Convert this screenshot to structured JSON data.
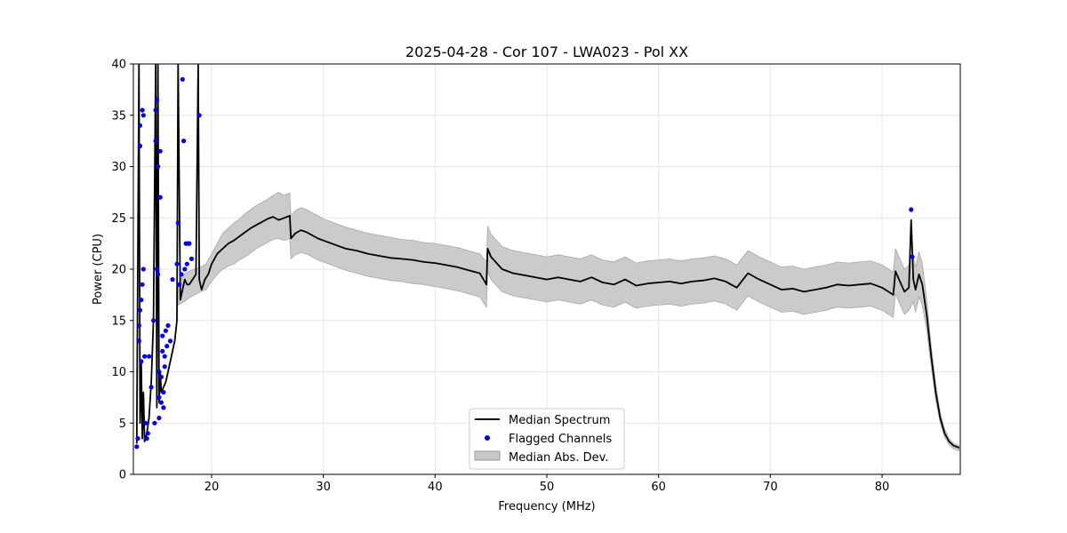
{
  "chart_data": {
    "type": "line",
    "title": "2025-04-28 - Cor 107 - LWA023 - Pol XX",
    "xlabel": "Frequency (MHz)",
    "ylabel": "Power (CPU)",
    "xlim": [
      13,
      87
    ],
    "ylim": [
      0,
      40
    ],
    "xticks": [
      20,
      30,
      40,
      50,
      60,
      70,
      80
    ],
    "yticks": [
      0,
      5,
      10,
      15,
      20,
      25,
      30,
      35,
      40
    ],
    "grid": true,
    "legend_position": "bottom-center",
    "series": [
      {
        "name": "Median Spectrum",
        "kind": "line",
        "color": "#000000",
        "x": [
          13.3,
          13.5,
          13.6,
          13.7,
          13.8,
          13.9,
          14.0,
          14.2,
          14.4,
          14.6,
          14.8,
          15.0,
          15.1,
          15.2,
          15.3,
          15.4,
          15.5,
          15.7,
          15.9,
          16.1,
          16.3,
          16.5,
          16.7,
          16.9,
          17.0,
          17.2,
          17.4,
          17.6,
          17.8,
          18.0,
          18.3,
          18.6,
          18.8,
          18.9,
          19.1,
          19.4,
          19.7,
          20.0,
          20.5,
          21.0,
          21.5,
          22.0,
          22.5,
          23.0,
          23.5,
          24.0,
          24.5,
          25.0,
          25.5,
          26.0,
          26.5,
          27.0,
          27.1,
          27.5,
          28.0,
          28.5,
          29.0,
          29.5,
          30.0,
          31.0,
          32.0,
          33.0,
          34.0,
          35.0,
          36.0,
          37.0,
          38.0,
          39.0,
          40.0,
          41.0,
          42.0,
          43.0,
          44.0,
          44.6,
          44.7,
          45.0,
          46.0,
          47.0,
          48.0,
          49.0,
          50.0,
          51.0,
          52.0,
          53.0,
          54.0,
          55.0,
          56.0,
          57.0,
          58.0,
          59.0,
          60.0,
          61.0,
          62.0,
          63.0,
          64.0,
          65.0,
          66.0,
          67.0,
          68.0,
          69.0,
          70.0,
          71.0,
          72.0,
          73.0,
          74.0,
          75.0,
          76.0,
          77.0,
          78.0,
          79.0,
          80.0,
          81.0,
          81.2,
          81.6,
          82.0,
          82.4,
          82.6,
          82.8,
          83.0,
          83.3,
          83.6,
          84.0,
          84.4,
          84.8,
          85.2,
          85.6,
          86.0,
          86.4,
          86.9
        ],
        "y": [
          3.0,
          40,
          5.0,
          11,
          3.5,
          8,
          3.2,
          4.0,
          5.5,
          9.0,
          15,
          40,
          6.5,
          40,
          7.0,
          10,
          8.0,
          8.5,
          9.0,
          10,
          11,
          12,
          13,
          15,
          40,
          17,
          18,
          19,
          18.5,
          18.5,
          19,
          19.5,
          40,
          19,
          18,
          19,
          19.5,
          20.5,
          21.5,
          22.0,
          22.5,
          22.8,
          23.2,
          23.6,
          24.0,
          24.3,
          24.6,
          24.9,
          25.1,
          24.8,
          25.0,
          25.2,
          23.0,
          23.5,
          23.8,
          23.6,
          23.3,
          23.0,
          22.8,
          22.4,
          22.0,
          21.8,
          21.5,
          21.3,
          21.1,
          21.0,
          20.9,
          20.7,
          20.6,
          20.4,
          20.2,
          19.9,
          19.6,
          18.5,
          22.0,
          21.2,
          20.0,
          19.6,
          19.4,
          19.2,
          19.0,
          19.2,
          19.0,
          18.8,
          19.2,
          18.7,
          18.5,
          19.0,
          18.4,
          18.6,
          18.7,
          18.8,
          18.6,
          18.8,
          18.9,
          19.1,
          18.8,
          18.2,
          19.6,
          19.0,
          18.5,
          18.0,
          18.1,
          17.8,
          18.0,
          18.2,
          18.5,
          18.4,
          18.5,
          18.6,
          18.2,
          17.5,
          19.8,
          18.8,
          17.8,
          18.2,
          24.8,
          19.0,
          18.0,
          19.5,
          18.5,
          15.5,
          11.5,
          8.0,
          5.5,
          4.0,
          3.2,
          2.8,
          2.6
        ]
      },
      {
        "name": "Flagged Channels",
        "kind": "scatter",
        "color": "#0000ff",
        "x": [
          13.3,
          13.4,
          13.5,
          13.5,
          13.6,
          13.6,
          13.6,
          13.7,
          13.7,
          13.8,
          13.8,
          13.9,
          13.9,
          14.0,
          14.1,
          14.2,
          14.3,
          14.4,
          14.6,
          14.8,
          14.9,
          15.0,
          15.0,
          15.1,
          15.1,
          15.2,
          15.2,
          15.3,
          15.3,
          15.3,
          15.4,
          15.4,
          15.5,
          15.5,
          15.6,
          15.6,
          15.7,
          15.7,
          15.8,
          15.8,
          15.9,
          16.0,
          16.1,
          16.3,
          16.5,
          16.9,
          17.0,
          17.1,
          17.3,
          17.4,
          17.5,
          17.6,
          17.7,
          17.8,
          17.9,
          18.0,
          18.2,
          18.9,
          82.6,
          82.7
        ],
        "y": [
          2.7,
          3.5,
          13.0,
          14.5,
          32.0,
          34.0,
          16.0,
          17.0,
          11.0,
          35.5,
          18.5,
          20.0,
          35.0,
          11.5,
          5.0,
          3.5,
          4.0,
          11.5,
          8.5,
          15.0,
          5.0,
          32.5,
          35.5,
          20.0,
          36.5,
          30.0,
          19.5,
          10.0,
          7.5,
          5.5,
          31.5,
          27.0,
          9.5,
          7.0,
          12.0,
          13.5,
          6.5,
          8.0,
          10.5,
          11.5,
          14.0,
          12.5,
          14.5,
          13.0,
          19.0,
          20.5,
          24.5,
          18.5,
          19.5,
          38.5,
          32.5,
          20.0,
          22.5,
          20.5,
          22.5,
          22.5,
          21.0,
          35.0,
          25.8,
          21.2
        ]
      },
      {
        "name": "Median Abs. Dev.",
        "kind": "band",
        "color": "#c8c8c8",
        "x": [
          17.0,
          17.5,
          18.0,
          18.5,
          19.0,
          19.5,
          20.0,
          20.5,
          21.0,
          21.5,
          22.0,
          22.5,
          23.0,
          23.5,
          24.0,
          24.5,
          25.0,
          25.5,
          26.0,
          26.5,
          27.0,
          27.1,
          27.5,
          28.0,
          28.5,
          29.0,
          29.5,
          30.0,
          31.0,
          32.0,
          33.0,
          34.0,
          35.0,
          36.0,
          37.0,
          38.0,
          39.0,
          40.0,
          41.0,
          42.0,
          43.0,
          44.0,
          44.6,
          44.7,
          45.0,
          46.0,
          47.0,
          48.0,
          49.0,
          50.0,
          51.0,
          52.0,
          53.0,
          54.0,
          55.0,
          56.0,
          57.0,
          58.0,
          59.0,
          60.0,
          61.0,
          62.0,
          63.0,
          64.0,
          65.0,
          66.0,
          67.0,
          68.0,
          69.0,
          70.0,
          71.0,
          72.0,
          73.0,
          74.0,
          75.0,
          76.0,
          77.0,
          78.0,
          79.0,
          80.0,
          81.0,
          81.2,
          81.6,
          82.0,
          82.4,
          82.8,
          83.0,
          83.3,
          83.6,
          84.0,
          84.4,
          84.8,
          85.2,
          85.6,
          86.0,
          86.4,
          86.9
        ],
        "lower": [
          16.5,
          16.8,
          17.2,
          17.5,
          17.8,
          18.0,
          18.8,
          19.5,
          20.0,
          20.3,
          20.5,
          20.9,
          21.2,
          21.6,
          22.0,
          22.3,
          22.6,
          22.9,
          23.0,
          22.8,
          23.0,
          21.0,
          21.4,
          21.6,
          21.5,
          21.2,
          20.9,
          20.7,
          20.3,
          19.9,
          19.6,
          19.3,
          19.1,
          18.9,
          18.8,
          18.6,
          18.5,
          18.3,
          18.1,
          17.9,
          17.6,
          17.3,
          16.3,
          19.8,
          19.0,
          17.8,
          17.4,
          17.2,
          17.0,
          16.8,
          17.0,
          16.8,
          16.6,
          17.0,
          16.5,
          16.3,
          16.8,
          16.2,
          16.4,
          16.5,
          16.6,
          16.4,
          16.6,
          16.7,
          16.9,
          16.6,
          16.0,
          17.4,
          16.8,
          16.3,
          15.8,
          15.9,
          15.6,
          15.8,
          16.0,
          16.3,
          16.2,
          16.3,
          16.4,
          16.0,
          15.3,
          17.6,
          16.6,
          15.6,
          16.0,
          16.8,
          15.8,
          17.3,
          16.5,
          14.0,
          10.5,
          7.2,
          5.0,
          3.6,
          2.9,
          2.5,
          2.3
        ],
        "upper": [
          18.5,
          19.5,
          19.8,
          20.0,
          20.2,
          20.5,
          21.5,
          22.5,
          23.5,
          24.0,
          24.5,
          24.9,
          25.4,
          25.8,
          26.2,
          26.5,
          26.8,
          27.2,
          27.5,
          27.2,
          27.4,
          25.2,
          25.7,
          26.0,
          25.8,
          25.5,
          25.2,
          24.9,
          24.5,
          24.1,
          23.8,
          23.5,
          23.3,
          23.1,
          22.9,
          22.8,
          22.6,
          22.5,
          22.3,
          22.1,
          21.8,
          21.5,
          20.7,
          24.2,
          23.4,
          22.2,
          21.8,
          21.6,
          21.4,
          21.2,
          21.4,
          21.2,
          21.0,
          21.4,
          20.9,
          20.7,
          21.2,
          20.6,
          20.8,
          20.9,
          21.0,
          20.8,
          21.0,
          21.1,
          21.3,
          21.0,
          20.4,
          21.8,
          21.2,
          20.7,
          20.2,
          20.3,
          20.0,
          20.2,
          20.4,
          20.7,
          20.6,
          20.7,
          20.8,
          20.4,
          19.7,
          22.0,
          21.0,
          20.0,
          20.4,
          21.2,
          20.2,
          21.7,
          20.5,
          17.0,
          12.5,
          8.8,
          6.0,
          4.4,
          3.5,
          3.0,
          2.8
        ]
      }
    ],
    "legend": [
      {
        "label": "Median Spectrum",
        "marker": "line",
        "color": "#000000"
      },
      {
        "label": "Flagged Channels",
        "marker": "dot",
        "color": "#0000ff"
      },
      {
        "label": "Median Abs. Dev.",
        "marker": "patch",
        "color": "#c8c8c8"
      }
    ]
  }
}
